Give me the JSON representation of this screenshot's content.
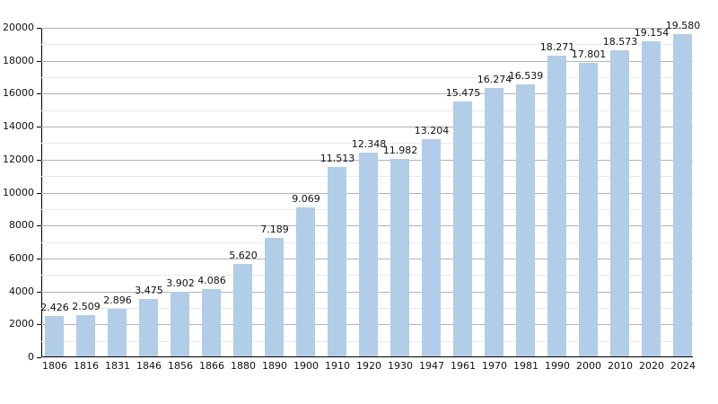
{
  "chart_data": {
    "type": "bar",
    "title": "",
    "xlabel": "",
    "ylabel": "",
    "categories": [
      "1806",
      "1816",
      "1831",
      "1846",
      "1856",
      "1866",
      "1880",
      "1890",
      "1900",
      "1910",
      "1920",
      "1930",
      "1947",
      "1961",
      "1970",
      "1981",
      "1990",
      "2000",
      "2010",
      "2020",
      "2024"
    ],
    "values": [
      2426,
      2509,
      2896,
      3475,
      3902,
      4086,
      5620,
      7189,
      9069,
      11513,
      12348,
      11982,
      13204,
      15475,
      16274,
      16539,
      18271,
      17801,
      18573,
      19154,
      19580
    ],
    "value_labels": [
      "2.426",
      "2.509",
      "2.896",
      "3.475",
      "3.902",
      "4.086",
      "5.620",
      "7.189",
      "9.069",
      "11.513",
      "12.348",
      "11.982",
      "13.204",
      "15.475",
      "16.274",
      "16.539",
      "18.271",
      "17.801",
      "18.573",
      "19.154",
      "19.580"
    ],
    "ylim": [
      0,
      20000
    ],
    "y_major_step": 2000,
    "y_minor_step": 1000,
    "y_tick_labels": [
      "0",
      "2000",
      "4000",
      "6000",
      "8000",
      "10000",
      "12000",
      "14000",
      "16000",
      "18000",
      "20000"
    ],
    "grid": "on",
    "legend": "none",
    "colors": {
      "bar_fill": "#b1cde7",
      "major_gridline": "#b3b3b3",
      "minor_gridline": "#e9e9e9",
      "axis": "#000000",
      "text": "#111111",
      "background": "#ffffff"
    }
  }
}
